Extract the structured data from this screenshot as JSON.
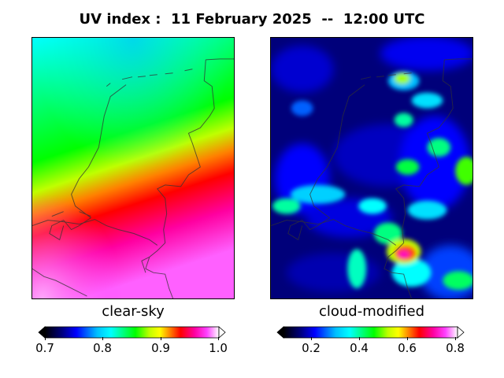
{
  "title": "UV index :  11 February 2025  --  12:00 UTC",
  "panels": [
    {
      "label": "clear-sky",
      "colorbar": {
        "ticks": [
          "0.7",
          "0.8",
          "0.9",
          "1.0"
        ],
        "min": 0.7,
        "max": 1.0
      }
    },
    {
      "label": "cloud-modified",
      "colorbar": {
        "ticks": [
          "0.2",
          "0.4",
          "0.6",
          "0.8"
        ],
        "min": 0.08,
        "max": 0.8
      }
    }
  ],
  "colormap": [
    "#000000",
    "#000080",
    "#0000ff",
    "#00bfff",
    "#00ffff",
    "#00ff80",
    "#00ff00",
    "#bfff00",
    "#ffff00",
    "#ff8000",
    "#ff0000",
    "#ff00a0",
    "#ff40ff",
    "#ffc0ff",
    "#ffffff"
  ]
}
